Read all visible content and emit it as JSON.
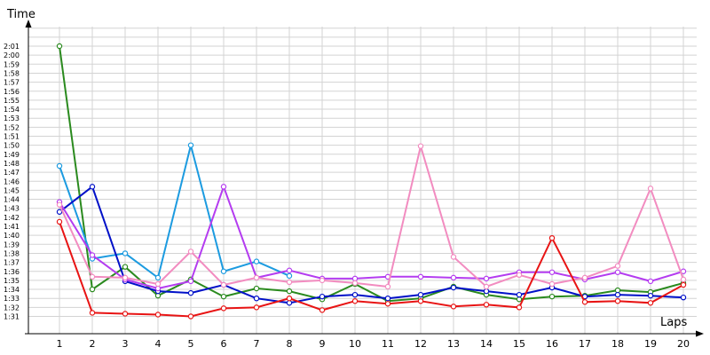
{
  "chart_data": {
    "type": "line",
    "xlabel": "Laps",
    "ylabel": "Time",
    "x": [
      1,
      2,
      3,
      4,
      5,
      6,
      7,
      8,
      9,
      10,
      11,
      12,
      13,
      14,
      15,
      16,
      17,
      18,
      19,
      20
    ],
    "ylim": [
      90.5,
      121
    ],
    "y_ticks": [
      "1:31",
      "1:32",
      "1:33",
      "1:34",
      "1:35",
      "1:36",
      "1:37",
      "1:38",
      "1:39",
      "1:40",
      "1:41",
      "1:42",
      "1:43",
      "1:44",
      "1:45",
      "1:46",
      "1:47",
      "1:48",
      "1:49",
      "1:50",
      "1:51",
      "1:52",
      "1:53",
      "1:54",
      "1:55",
      "1:56",
      "1:57",
      "1:58",
      "1:59",
      "2:00",
      "2:01"
    ],
    "grid": true,
    "series": [
      {
        "color": "#2a8a1e",
        "values": [
          121.0,
          94.0,
          96.5,
          93.3,
          95.1,
          93.2,
          94.1,
          93.8,
          92.9,
          94.6,
          92.7,
          93.0,
          94.3,
          93.4,
          92.9,
          93.2,
          93.3,
          93.9,
          93.7,
          94.7
        ]
      },
      {
        "color": "#1c9be0",
        "values": [
          107.7,
          97.4,
          98.0,
          95.3,
          110.0,
          96.0,
          97.1,
          95.5,
          null,
          null,
          null,
          null,
          null,
          null,
          null,
          null,
          null,
          null,
          null,
          null
        ]
      },
      {
        "color": "#0010c8",
        "values": [
          102.6,
          105.4,
          94.9,
          93.8,
          93.6,
          94.5,
          93.0,
          92.5,
          93.2,
          93.4,
          93.0,
          93.4,
          94.2,
          93.8,
          93.4,
          94.2,
          93.2,
          93.4,
          93.3,
          93.1
        ]
      },
      {
        "color": "#b43cf0",
        "values": [
          103.7,
          97.8,
          95.1,
          94.1,
          94.9,
          105.4,
          95.3,
          96.1,
          95.2,
          95.2,
          95.4,
          95.4,
          95.3,
          95.2,
          95.9,
          95.9,
          95.1,
          95.9,
          94.9,
          96.0
        ]
      },
      {
        "color": "#f28cc0",
        "values": [
          103.4,
          95.4,
          95.3,
          94.6,
          98.2,
          94.5,
          95.3,
          94.8,
          95.0,
          94.7,
          94.3,
          109.9,
          97.6,
          94.3,
          95.6,
          94.6,
          95.3,
          96.6,
          105.2,
          95.1
        ]
      },
      {
        "color": "#e81414",
        "values": [
          101.5,
          91.4,
          91.3,
          91.2,
          91.0,
          91.9,
          92.0,
          93.0,
          91.7,
          92.7,
          92.4,
          92.7,
          92.1,
          92.3,
          92.0,
          99.7,
          92.6,
          92.7,
          92.5,
          94.5
        ]
      }
    ]
  }
}
